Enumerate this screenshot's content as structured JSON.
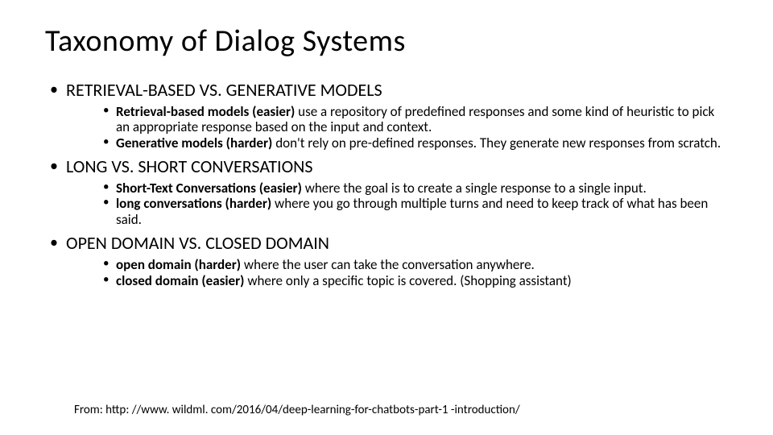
{
  "title": "Taxonomy of Dialog Systems",
  "sections": [
    {
      "heading": "RETRIEVAL-BASED VS. GENERATIVE MODELS",
      "items": [
        {
          "lead": "Retrieval-based models (easier) ",
          "rest": "use a repository of predefined responses and some kind of heuristic to pick an appropriate response based on the input and context."
        },
        {
          "lead": "Generative models (harder) ",
          "rest": "don't rely on pre-defined responses. They generate new responses from scratch."
        }
      ]
    },
    {
      "heading": "LONG VS. SHORT CONVERSATIONS",
      "items": [
        {
          "lead": "Short-Text Conversations (easier) ",
          "rest": "where the goal is to create a single response to a single input."
        },
        {
          "lead": "long conversations (harder) ",
          "rest": "where you go through multiple turns and need to keep track of what has been said."
        }
      ]
    },
    {
      "heading": "OPEN DOMAIN VS. CLOSED DOMAIN",
      "items": [
        {
          "lead": "open domain (harder) ",
          "rest": "where the user can take the conversation anywhere."
        },
        {
          "lead": "closed domain (easier) ",
          "rest": "where only a specific topic is covered. (Shopping assistant)"
        }
      ]
    }
  ],
  "source": "From: http: //www. wildml. com/2016/04/deep-learning-for-chatbots-part-1 -introduction/",
  "colors": {
    "background": "#ffffff",
    "text": "#000000"
  },
  "typography": {
    "title_fontsize": 38,
    "heading_fontsize": 22,
    "body_fontsize": 17,
    "source_fontsize": 15
  }
}
